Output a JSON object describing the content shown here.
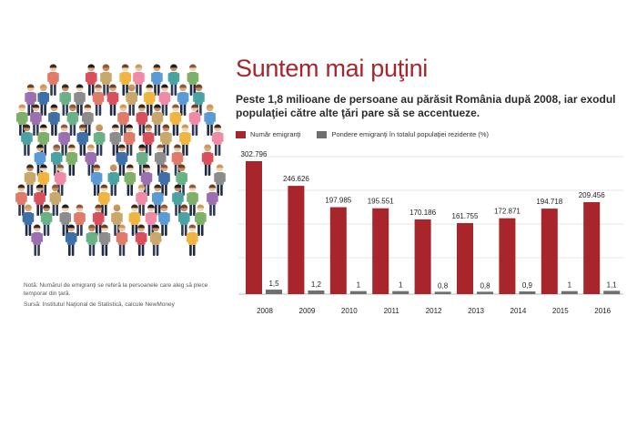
{
  "title": "Suntem mai puţini",
  "subtitle": "Peste 1,8 milioane de persoane au părăsit România după 2008, iar exodul populaţiei către alte ţări pare să se accentueze.",
  "notes": {
    "note": "Notă: Numărul de emigranţi se referă la persoanele care aleg să plece temporar din ţară.",
    "source": "Sursă: Institutul Naţional de Statistică, calcule NewMoney"
  },
  "illustration": {
    "name": "crowd-of-people-illustration"
  },
  "colors": {
    "emigrants": "#a8252c",
    "share": "#6e6e6e",
    "title": "#a8252c"
  },
  "chart_data": {
    "type": "bar",
    "categories": [
      "2008",
      "2009",
      "2010",
      "2011",
      "2012",
      "2013",
      "2014",
      "2015",
      "2016"
    ],
    "series": [
      {
        "name": "Număr emigranţi",
        "values": [
          302796,
          246626,
          197985,
          195551,
          170186,
          161755,
          172871,
          194718,
          209456
        ],
        "labels": [
          "302.796",
          "246.626",
          "197.985",
          "195.551",
          "170.186",
          "161.755",
          "172.871",
          "194.718",
          "209.456"
        ]
      },
      {
        "name": "Pondere emigranţi în totalul populaţiei rezidente (%)",
        "values": [
          1.5,
          1.2,
          1,
          1,
          0.8,
          0.8,
          0.9,
          1,
          1.1
        ],
        "labels": [
          "1,5",
          "1,2",
          "1",
          "1",
          "0,8",
          "0,8",
          "0,9",
          "1",
          "1,1"
        ]
      }
    ],
    "grid": true,
    "legend_position": "top-left"
  }
}
